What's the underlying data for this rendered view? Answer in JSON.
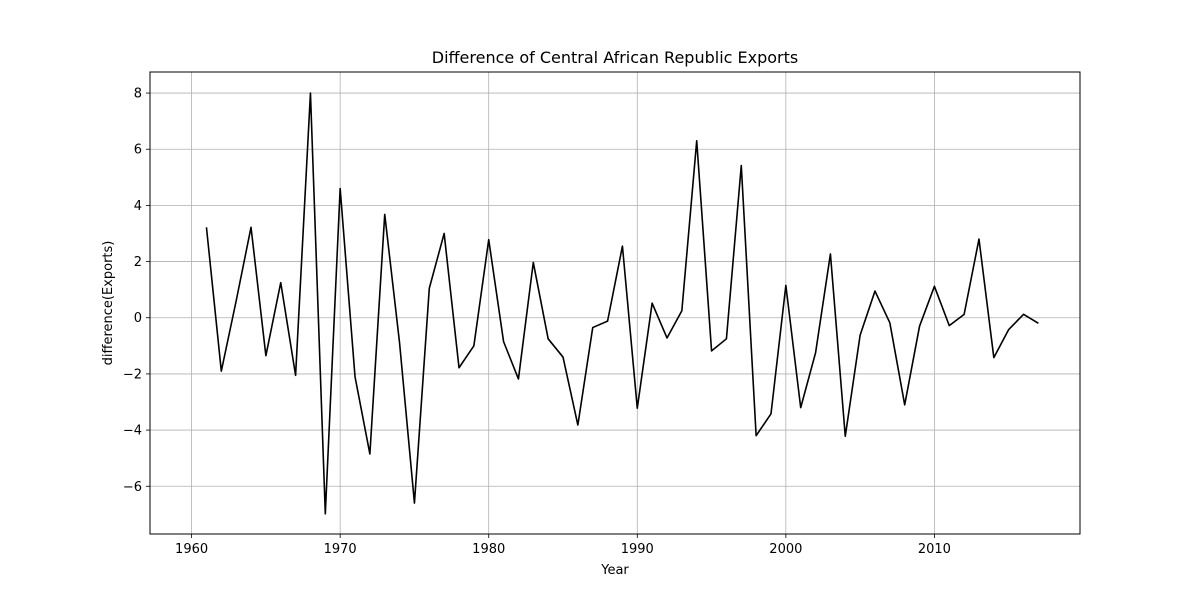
{
  "chart_data": {
    "type": "line",
    "title": "Difference of Central African Republic Exports",
    "xlabel": "Year",
    "ylabel": "difference(Exports)",
    "xlim": [
      1957.2,
      2019.8
    ],
    "ylim": [
      -7.7,
      8.75
    ],
    "xticks": [
      1960,
      1970,
      1980,
      1990,
      2000,
      2010
    ],
    "yticks": [
      -6,
      -4,
      -2,
      0,
      2,
      4,
      6,
      8
    ],
    "grid": true,
    "legend": "none",
    "series": [
      {
        "color": "#000000",
        "x": [
          1961,
          1962,
          1963,
          1964,
          1965,
          1966,
          1967,
          1968,
          1969,
          1970,
          1971,
          1972,
          1973,
          1974,
          1975,
          1976,
          1977,
          1978,
          1979,
          1980,
          1981,
          1982,
          1983,
          1984,
          1985,
          1986,
          1987,
          1988,
          1989,
          1990,
          1991,
          1992,
          1993,
          1994,
          1995,
          1996,
          1997,
          1998,
          1999,
          2000,
          2001,
          2002,
          2003,
          2004,
          2005,
          2006,
          2007,
          2008,
          2009,
          2010,
          2011,
          2012,
          2013,
          2014,
          2015,
          2016,
          2017
        ],
        "y": [
          3.22,
          -1.9,
          0.6,
          3.22,
          -1.35,
          1.25,
          -2.05,
          8.0,
          -6.98,
          4.6,
          -2.1,
          -4.85,
          3.68,
          -0.9,
          -6.6,
          1.05,
          3.0,
          -1.78,
          -1.0,
          2.78,
          -0.85,
          -2.18,
          1.97,
          -0.75,
          -1.4,
          -3.82,
          -0.35,
          -0.12,
          2.55,
          -3.22,
          0.52,
          -0.72,
          0.25,
          6.3,
          -1.18,
          -0.75,
          5.42,
          -4.2,
          -3.42,
          1.15,
          -3.2,
          -1.25,
          2.27,
          -4.22,
          -0.62,
          0.95,
          -0.18,
          -3.1,
          -0.3,
          1.12,
          -0.28,
          0.12,
          2.8,
          -1.42,
          -0.42,
          0.12,
          -0.2
        ]
      }
    ]
  }
}
